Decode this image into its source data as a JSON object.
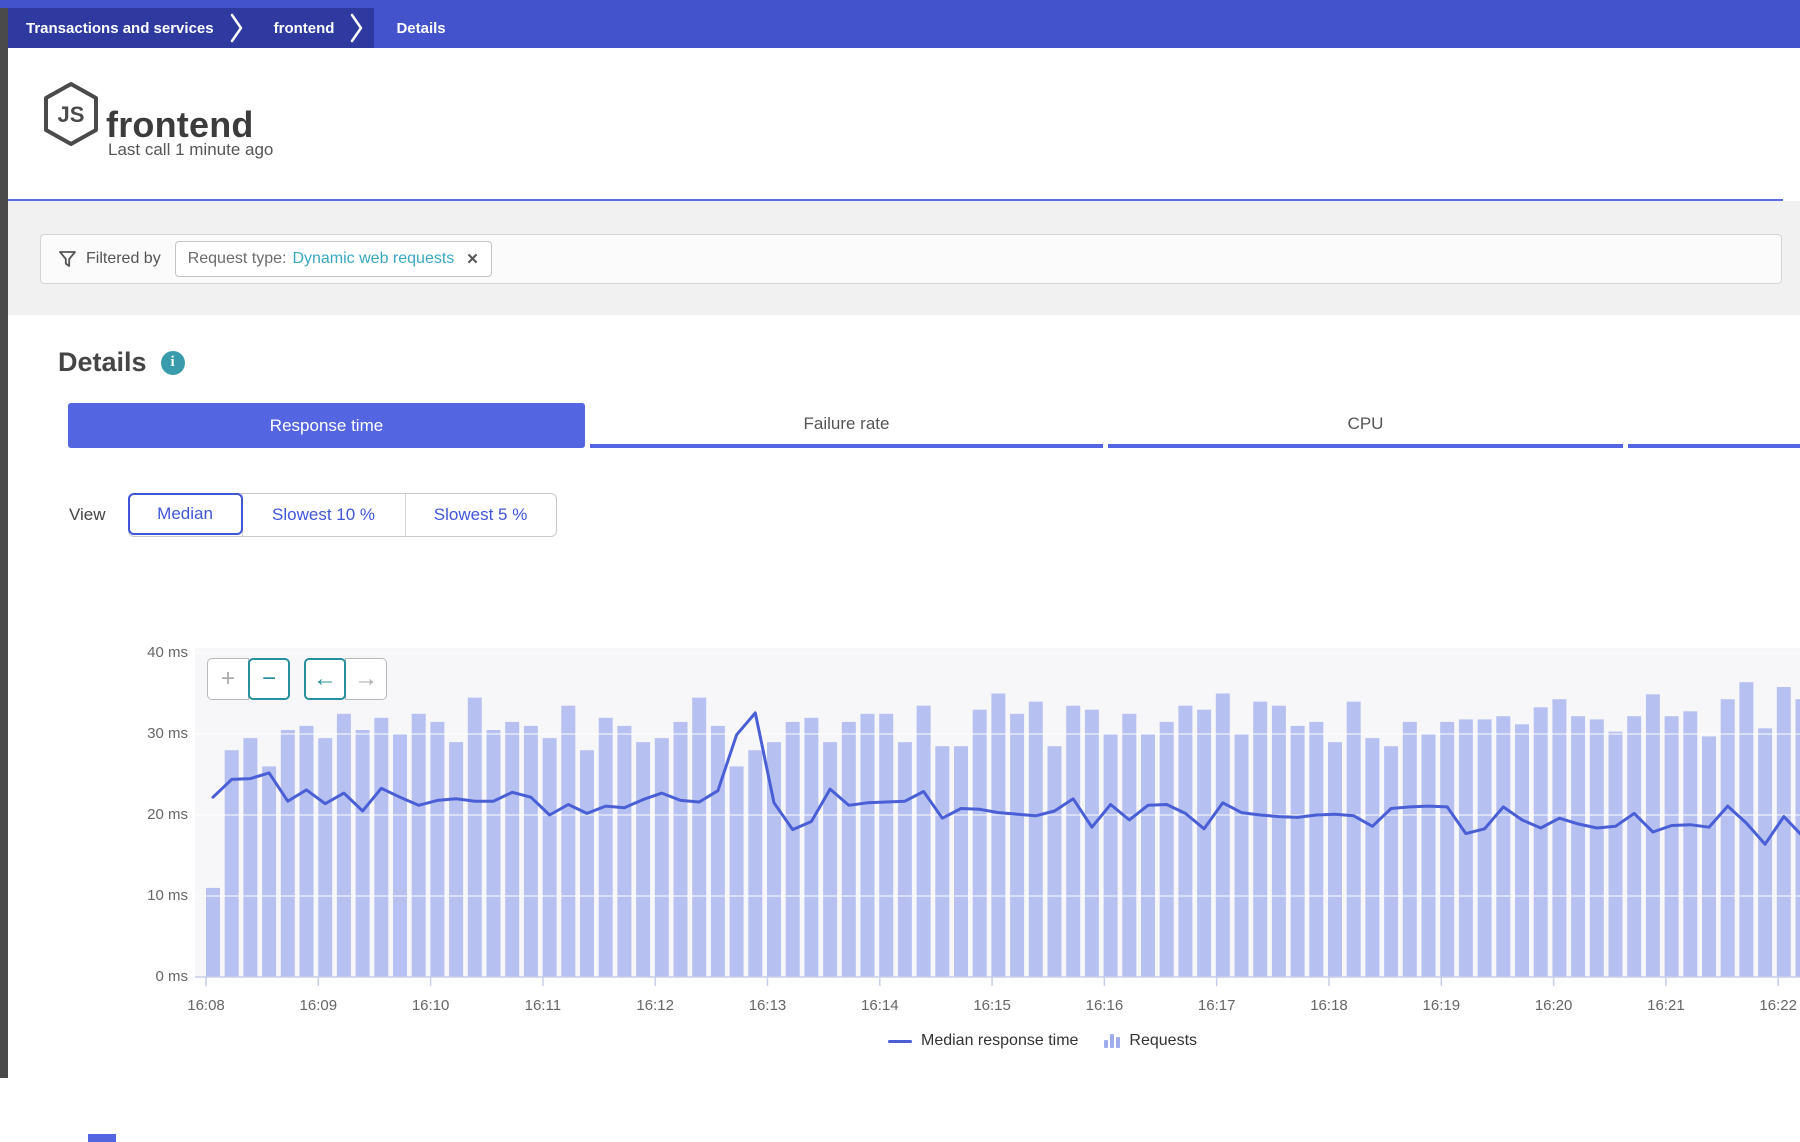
{
  "breadcrumb": {
    "items": [
      {
        "label": "Transactions and services"
      },
      {
        "label": "frontend"
      },
      {
        "label": "Details"
      }
    ]
  },
  "header": {
    "title": "frontend",
    "subtitle": "Last call 1 minute ago",
    "icon": "nodejs-icon",
    "icon_text": "JS"
  },
  "filter": {
    "label": "Filtered by",
    "chip": {
      "prefix": "Request type:",
      "value": "Dynamic web requests",
      "close_glyph": "✕"
    }
  },
  "details": {
    "heading": "Details",
    "info_glyph": "i",
    "tabs": [
      {
        "label": "Response time",
        "selected": true
      },
      {
        "label": "Failure rate",
        "selected": false
      },
      {
        "label": "CPU",
        "selected": false
      },
      {
        "label": "",
        "selected": false
      }
    ],
    "view": {
      "label": "View",
      "options": [
        {
          "label": "Median",
          "selected": true
        },
        {
          "label": "Slowest 10 %",
          "selected": false
        },
        {
          "label": "Slowest 5 %",
          "selected": false
        }
      ]
    }
  },
  "chart_controls": {
    "buttons": [
      {
        "name": "zoom-in-button",
        "glyph": "+",
        "active": false
      },
      {
        "name": "zoom-out-button",
        "glyph": "−",
        "active": true
      },
      {
        "name": "pan-back-button",
        "glyph": "←",
        "active": true
      },
      {
        "name": "pan-forward-button",
        "glyph": "→",
        "active": false
      }
    ]
  },
  "chart_data": {
    "type": "bar+line",
    "title": "",
    "xlabel": "",
    "ylabel": "",
    "ylim": [
      0,
      40
    ],
    "grid": true,
    "legend_position": "bottom-center",
    "y_tick_values": [
      0,
      10,
      20,
      30,
      40
    ],
    "y_tick_labels": [
      "0 ms",
      "10 ms",
      "20 ms",
      "30 ms",
      "40 ms"
    ],
    "x_tick_labels": [
      "16:08",
      "16:09",
      "16:10",
      "16:11",
      "16:12",
      "16:13",
      "16:14",
      "16:15",
      "16:16",
      "16:17",
      "16:18",
      "16:19",
      "16:20",
      "16:21",
      "16:22"
    ],
    "bars_per_minute": 6,
    "bar_series": {
      "name": "Requests",
      "note": "heights read in axis units (ms scale) as displayed",
      "values": [
        11,
        28,
        29.5,
        26,
        30.5,
        31,
        29.5,
        32.5,
        30.5,
        32,
        30,
        32.5,
        31.5,
        29,
        34.5,
        30.5,
        31.5,
        31,
        29.5,
        33.5,
        28,
        32,
        31,
        29,
        29.5,
        31.5,
        34.5,
        31,
        26,
        28,
        29,
        31.5,
        32,
        29,
        31.5,
        32.5,
        32.5,
        29,
        33.5,
        28.5,
        28.5,
        33,
        35,
        32.5,
        34,
        28.5,
        33.5,
        33,
        30,
        32.5,
        30,
        31.5,
        33.5,
        33,
        35,
        30,
        34,
        33.5,
        31,
        31.5,
        29,
        34,
        29.5,
        28.5,
        31.5,
        30,
        31.5,
        31.8,
        31.8,
        32.2,
        31.2,
        33.3,
        34.3,
        32.2,
        31.8,
        30.3,
        32.2,
        34.9,
        32.2,
        32.8,
        29.7,
        34.3,
        36.4,
        30.7,
        35.8,
        34.3
      ]
    },
    "line_series": {
      "name": "Median response time",
      "unit": "ms",
      "values": [
        22.2,
        24.4,
        24.5,
        25.2,
        21.7,
        23.1,
        21.4,
        22.7,
        20.5,
        23.3,
        22.2,
        21.2,
        21.8,
        22.0,
        21.7,
        21.7,
        22.8,
        22.2,
        20.0,
        21.3,
        20.2,
        21.1,
        20.9,
        21.9,
        22.7,
        21.8,
        21.6,
        23.0,
        29.9,
        32.6,
        21.5,
        18.2,
        19.2,
        23.2,
        21.2,
        21.5,
        21.6,
        21.7,
        22.9,
        19.6,
        20.8,
        20.7,
        20.3,
        20.1,
        19.9,
        20.5,
        22.0,
        18.5,
        21.3,
        19.4,
        21.2,
        21.3,
        20.2,
        18.3,
        21.5,
        20.3,
        20.0,
        19.8,
        19.7,
        20.0,
        20.1,
        19.9,
        18.6,
        20.8,
        21.0,
        21.1,
        21.0,
        17.7,
        18.3,
        21.0,
        19.4,
        18.4,
        19.6,
        18.9,
        18.4,
        18.6,
        20.2,
        17.9,
        18.7,
        18.8,
        18.5,
        21.1,
        19.0,
        16.4,
        19.8,
        17.4
      ]
    },
    "legend": [
      {
        "label": "Median response time",
        "swatch": "line"
      },
      {
        "label": "Requests",
        "swatch": "bars"
      }
    ]
  },
  "colors": {
    "accent_blue": "#5365e1",
    "breadcrumb_bar": "#4353cb",
    "breadcrumb_segment": "#2e3aa0",
    "teal_accent": "#3aa8c1",
    "teal_control": "#2a8f9c",
    "bar_fill": "#b7c1f1",
    "line_stroke": "#4a5fd6",
    "chart_bg": "#f7f7f9",
    "axis_text": "#666666"
  }
}
